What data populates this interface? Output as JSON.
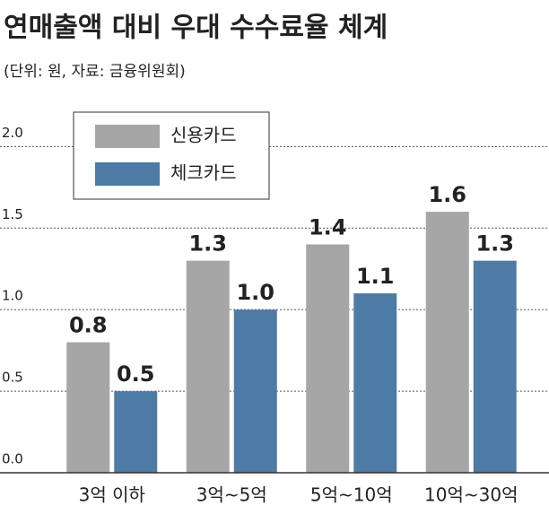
{
  "chart_data": {
    "type": "bar",
    "title": "연매출액 대비 우대 수수료율 체계",
    "subtitle": "(단위: 원, 자료: 금융위원회)",
    "categories": [
      "3억 이하",
      "3억~5억",
      "5억~10억",
      "10억~30억"
    ],
    "series": [
      {
        "name": "신용카드",
        "color": "#a6a6a6",
        "values": [
          0.8,
          1.3,
          1.4,
          1.6
        ],
        "value_labels": [
          "0.8",
          "1.3",
          "1.4",
          "1.6"
        ]
      },
      {
        "name": "체크카드",
        "color": "#4e7ba6",
        "values": [
          0.5,
          1.0,
          1.1,
          1.3
        ],
        "value_labels": [
          "0.5",
          "1.0",
          "1.1",
          "1.3"
        ]
      }
    ],
    "ylim": [
      0,
      2.2
    ],
    "yticks": [
      {
        "value": 0,
        "label": "0.0"
      },
      0.5,
      {
        "value": 1,
        "label": "1.0"
      },
      1.5,
      {
        "value": 2,
        "label": "2.0"
      }
    ],
    "grid": true,
    "legend": "upper left"
  }
}
